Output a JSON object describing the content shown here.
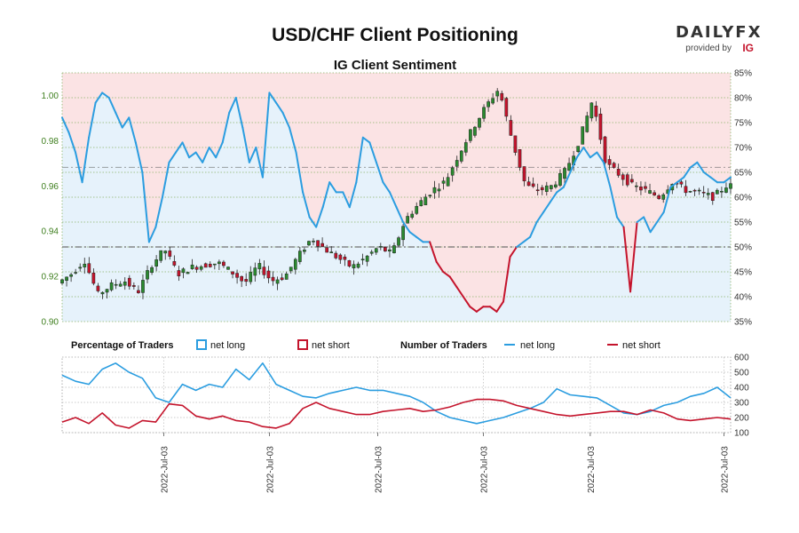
{
  "chart_data": {
    "type": "line",
    "title": "USD/CHF Client Positioning",
    "subtitle": "IG Client Sentiment",
    "brand": {
      "name": "DAILYFX",
      "provided_by": "provided by",
      "provider": "IG"
    },
    "colors": {
      "net_long": "#2b9de0",
      "net_short": "#c4142c",
      "long_fill": "#e6f2fb",
      "short_fill": "#fbe3e4",
      "candle_up": "#2a8a2f",
      "candle_down": "#c4142c",
      "price_axis": "#3f7f1f"
    },
    "price_axis": {
      "ylim": [
        0.9,
        1.01
      ],
      "ticks": [
        "0.90",
        "0.92",
        "0.94",
        "0.96",
        "0.98",
        "1.00"
      ],
      "tick_values": [
        0.9,
        0.92,
        0.94,
        0.96,
        0.98,
        1.0
      ]
    },
    "sentiment_axis": {
      "ylim": [
        35,
        85
      ],
      "ticks": [
        "35%",
        "40%",
        "45%",
        "50%",
        "55%",
        "60%",
        "65%",
        "70%",
        "75%",
        "80%",
        "85%"
      ],
      "tick_values": [
        35,
        40,
        45,
        50,
        55,
        60,
        65,
        70,
        75,
        80,
        85
      ],
      "reference_levels": [
        50,
        66
      ]
    },
    "traders_axis": {
      "ylim": [
        100,
        600
      ],
      "ticks": [
        "100",
        "200",
        "300",
        "400",
        "500",
        "600"
      ],
      "tick_values": [
        100,
        200,
        300,
        400,
        500,
        600
      ]
    },
    "x_labels": [
      "2022-Jul-03",
      "2022-Jul-03",
      "2022-Jul-03",
      "2022-Jul-03",
      "2022-Jul-03",
      "2022-Jul-03"
    ],
    "x_label_positions": [
      0.152,
      0.31,
      0.472,
      0.63,
      0.79,
      0.99
    ],
    "legend": {
      "pct_title": "Percentage of Traders",
      "pct_long": "net long",
      "pct_short": "net short",
      "num_title": "Number of Traders",
      "num_long": "net long",
      "num_short": "net short"
    },
    "series": [
      {
        "name": "net long %",
        "x": [
          0,
          0.01,
          0.02,
          0.03,
          0.04,
          0.05,
          0.06,
          0.07,
          0.08,
          0.09,
          0.1,
          0.11,
          0.12,
          0.13,
          0.14,
          0.15,
          0.16,
          0.17,
          0.18,
          0.19,
          0.2,
          0.21,
          0.22,
          0.23,
          0.24,
          0.25,
          0.26,
          0.27,
          0.28,
          0.29,
          0.3,
          0.31,
          0.32,
          0.33,
          0.34,
          0.35,
          0.36,
          0.37,
          0.38,
          0.39,
          0.4,
          0.41,
          0.42,
          0.43,
          0.44,
          0.45,
          0.46,
          0.47,
          0.48,
          0.49,
          0.5,
          0.51,
          0.52,
          0.53,
          0.54,
          0.55,
          0.56,
          0.57,
          0.58,
          0.59,
          0.6,
          0.61,
          0.62,
          0.63,
          0.64,
          0.65,
          0.66,
          0.67,
          0.68,
          0.69,
          0.7,
          0.71,
          0.72,
          0.73,
          0.74,
          0.75,
          0.76,
          0.77,
          0.78,
          0.79,
          0.8,
          0.81,
          0.82,
          0.83,
          0.84,
          0.85,
          0.86,
          0.87,
          0.88,
          0.89,
          0.9,
          0.91,
          0.92,
          0.93,
          0.94,
          0.95,
          0.96,
          0.97,
          0.98,
          0.99,
          1.0
        ],
        "values": [
          76,
          73,
          69,
          63,
          72,
          79,
          81,
          80,
          77,
          74,
          76,
          71,
          65,
          51,
          54,
          60,
          67,
          69,
          71,
          68,
          69,
          67,
          70,
          68,
          71,
          77,
          80,
          74,
          67,
          70,
          64,
          81,
          79,
          77,
          74,
          69,
          61,
          56,
          54,
          58,
          63,
          61,
          61,
          58,
          63,
          72,
          71,
          67,
          63,
          61,
          58,
          55,
          53,
          52,
          51,
          51,
          47,
          45,
          44,
          42,
          40,
          38,
          37,
          38,
          38,
          37,
          39,
          48,
          50,
          51,
          52,
          55,
          57,
          59,
          61,
          62,
          65,
          68,
          70,
          68,
          69,
          67,
          62,
          56,
          54,
          41,
          55,
          56,
          53,
          55,
          57,
          62,
          63,
          64,
          66,
          67,
          65,
          64,
          63,
          63,
          64
        ]
      },
      {
        "name": "price",
        "x": [
          0,
          0.02,
          0.04,
          0.06,
          0.08,
          0.1,
          0.12,
          0.14,
          0.16,
          0.18,
          0.2,
          0.22,
          0.24,
          0.26,
          0.28,
          0.3,
          0.32,
          0.34,
          0.36,
          0.38,
          0.4,
          0.42,
          0.44,
          0.46,
          0.48,
          0.5,
          0.52,
          0.54,
          0.56,
          0.58,
          0.6,
          0.62,
          0.64,
          0.66,
          0.68,
          0.7,
          0.72,
          0.74,
          0.76,
          0.78,
          0.8,
          0.82,
          0.84,
          0.86,
          0.88,
          0.9,
          0.92,
          0.94,
          0.96,
          0.98,
          1.0
        ],
        "values": [
          0.917,
          0.921,
          0.927,
          0.912,
          0.916,
          0.918,
          0.913,
          0.925,
          0.932,
          0.921,
          0.924,
          0.925,
          0.926,
          0.922,
          0.917,
          0.925,
          0.918,
          0.92,
          0.929,
          0.937,
          0.932,
          0.928,
          0.924,
          0.928,
          0.933,
          0.93,
          0.945,
          0.952,
          0.958,
          0.962,
          0.974,
          0.985,
          0.995,
          1.003,
          0.98,
          0.96,
          0.958,
          0.96,
          0.967,
          0.98,
          0.998,
          0.97,
          0.965,
          0.96,
          0.958,
          0.955,
          0.962,
          0.958,
          0.957,
          0.955,
          0.96
        ]
      },
      {
        "name": "net long traders",
        "x": [
          0,
          0.02,
          0.04,
          0.06,
          0.08,
          0.1,
          0.12,
          0.14,
          0.16,
          0.18,
          0.2,
          0.22,
          0.24,
          0.26,
          0.28,
          0.3,
          0.32,
          0.34,
          0.36,
          0.38,
          0.4,
          0.42,
          0.44,
          0.46,
          0.48,
          0.5,
          0.52,
          0.54,
          0.56,
          0.58,
          0.6,
          0.62,
          0.64,
          0.66,
          0.68,
          0.7,
          0.72,
          0.74,
          0.76,
          0.78,
          0.8,
          0.82,
          0.84,
          0.86,
          0.88,
          0.9,
          0.92,
          0.94,
          0.96,
          0.98,
          1.0
        ],
        "values": [
          480,
          440,
          420,
          520,
          560,
          500,
          460,
          330,
          300,
          420,
          380,
          420,
          400,
          520,
          450,
          560,
          420,
          380,
          340,
          330,
          360,
          380,
          400,
          380,
          380,
          360,
          340,
          300,
          240,
          200,
          180,
          160,
          180,
          200,
          230,
          260,
          300,
          390,
          350,
          340,
          330,
          280,
          230,
          220,
          240,
          280,
          300,
          340,
          360,
          400,
          330
        ]
      },
      {
        "name": "net short traders",
        "x": [
          0,
          0.02,
          0.04,
          0.06,
          0.08,
          0.1,
          0.12,
          0.14,
          0.16,
          0.18,
          0.2,
          0.22,
          0.24,
          0.26,
          0.28,
          0.3,
          0.32,
          0.34,
          0.36,
          0.38,
          0.4,
          0.42,
          0.44,
          0.46,
          0.48,
          0.5,
          0.52,
          0.54,
          0.56,
          0.58,
          0.6,
          0.62,
          0.64,
          0.66,
          0.68,
          0.7,
          0.72,
          0.74,
          0.76,
          0.78,
          0.8,
          0.82,
          0.84,
          0.86,
          0.88,
          0.9,
          0.92,
          0.94,
          0.96,
          0.98,
          1.0
        ],
        "values": [
          170,
          200,
          160,
          230,
          150,
          130,
          180,
          170,
          290,
          280,
          210,
          190,
          210,
          180,
          170,
          140,
          130,
          160,
          260,
          300,
          260,
          240,
          220,
          220,
          240,
          250,
          260,
          240,
          250,
          270,
          300,
          320,
          320,
          310,
          280,
          260,
          240,
          220,
          210,
          220,
          230,
          240,
          240,
          220,
          250,
          230,
          190,
          180,
          190,
          200,
          190
        ]
      }
    ]
  }
}
